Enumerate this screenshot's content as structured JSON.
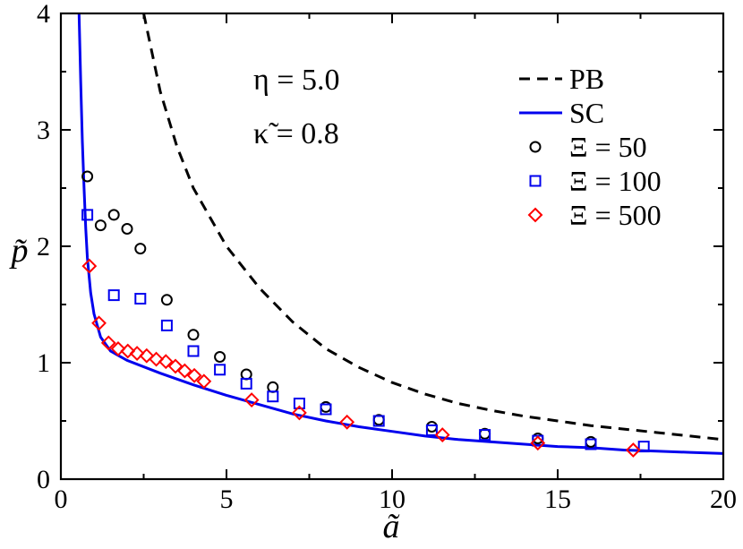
{
  "chart_data": {
    "type": "scatter",
    "xlabel": "ã",
    "ylabel": "p̃",
    "xlim": [
      0,
      20
    ],
    "ylim": [
      0,
      4
    ],
    "xticks": [
      0,
      5,
      10,
      15,
      20
    ],
    "yticks": [
      0,
      1,
      2,
      3,
      4
    ],
    "grid": false,
    "legend_position": "top-right",
    "annotations": [
      {
        "text": "η = 5.0"
      },
      {
        "text": "κ̃ = 0.8"
      }
    ],
    "series": [
      {
        "name": "PB",
        "kind": "line",
        "style": "dashed",
        "color": "#000000",
        "x": [
          2.5,
          3,
          3.5,
          4,
          5,
          6,
          7,
          8,
          9,
          10,
          11,
          12,
          13,
          14,
          15,
          16,
          17,
          18,
          19,
          20
        ],
        "y": [
          4.0,
          3.33,
          2.86,
          2.5,
          2.0,
          1.64,
          1.35,
          1.12,
          0.96,
          0.83,
          0.73,
          0.65,
          0.59,
          0.54,
          0.5,
          0.46,
          0.43,
          0.4,
          0.37,
          0.34
        ]
      },
      {
        "name": "SC",
        "kind": "line",
        "style": "solid",
        "color": "#0000ee",
        "x": [
          0.55,
          0.6,
          0.65,
          0.7,
          0.75,
          0.8,
          0.9,
          1.0,
          1.2,
          1.5,
          2,
          3,
          4,
          5,
          6,
          7,
          8,
          9,
          10,
          11,
          12,
          13,
          14,
          15,
          16,
          17,
          18,
          19,
          20
        ],
        "y": [
          4.0,
          3.4,
          2.9,
          2.5,
          2.15,
          1.9,
          1.6,
          1.42,
          1.22,
          1.1,
          1.02,
          0.91,
          0.81,
          0.72,
          0.64,
          0.56,
          0.5,
          0.45,
          0.41,
          0.37,
          0.34,
          0.32,
          0.3,
          0.28,
          0.27,
          0.25,
          0.24,
          0.23,
          0.22
        ]
      },
      {
        "name": "Ξ = 50",
        "kind": "markers",
        "marker": "circle",
        "color": "#000000",
        "x": [
          0.8,
          1.2,
          1.6,
          2.0,
          2.4,
          3.2,
          4.0,
          4.8,
          5.6,
          6.4,
          8.0,
          9.6,
          11.2,
          12.8,
          14.4,
          16.0
        ],
        "y": [
          2.6,
          2.18,
          2.27,
          2.15,
          1.98,
          1.54,
          1.24,
          1.05,
          0.9,
          0.79,
          0.62,
          0.51,
          0.45,
          0.39,
          0.35,
          0.32
        ]
      },
      {
        "name": "Ξ = 100",
        "kind": "markers",
        "marker": "square",
        "color": "#0000ee",
        "x": [
          0.8,
          1.6,
          2.4,
          3.2,
          4.0,
          4.8,
          5.6,
          6.4,
          7.2,
          8.0,
          9.6,
          11.2,
          12.8,
          14.4,
          16.0,
          17.6
        ],
        "y": [
          2.27,
          1.58,
          1.55,
          1.32,
          1.1,
          0.94,
          0.82,
          0.71,
          0.65,
          0.6,
          0.5,
          0.42,
          0.38,
          0.33,
          0.3,
          0.28
        ]
      },
      {
        "name": "Ξ = 500",
        "kind": "markers",
        "marker": "diamond",
        "color": "#ff0000",
        "x": [
          0.86,
          1.15,
          1.44,
          1.73,
          2.02,
          2.3,
          2.59,
          2.88,
          3.17,
          3.46,
          3.74,
          4.03,
          4.32,
          5.76,
          7.2,
          8.64,
          11.52,
          14.4,
          17.28
        ],
        "y": [
          1.83,
          1.34,
          1.17,
          1.12,
          1.1,
          1.08,
          1.06,
          1.03,
          1.01,
          0.97,
          0.93,
          0.89,
          0.84,
          0.68,
          0.57,
          0.49,
          0.38,
          0.31,
          0.25
        ]
      }
    ]
  }
}
